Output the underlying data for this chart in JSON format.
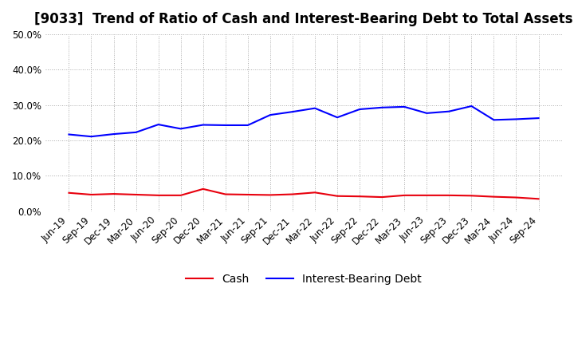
{
  "title": "[9033]  Trend of Ratio of Cash and Interest-Bearing Debt to Total Assets",
  "labels": [
    "Jun-19",
    "Sep-19",
    "Dec-19",
    "Mar-20",
    "Jun-20",
    "Sep-20",
    "Dec-20",
    "Mar-21",
    "Jun-21",
    "Sep-21",
    "Dec-21",
    "Mar-22",
    "Jun-22",
    "Sep-22",
    "Dec-22",
    "Mar-23",
    "Jun-23",
    "Sep-23",
    "Dec-23",
    "Mar-24",
    "Jun-24",
    "Sep-24"
  ],
  "cash": [
    5.2,
    4.7,
    4.9,
    4.7,
    4.5,
    4.5,
    6.3,
    4.8,
    4.7,
    4.6,
    4.8,
    5.3,
    4.3,
    4.2,
    4.0,
    4.5,
    4.5,
    4.5,
    4.4,
    4.1,
    3.9,
    3.5
  ],
  "interest_debt": [
    21.7,
    21.1,
    21.8,
    22.3,
    24.5,
    23.3,
    24.4,
    24.3,
    24.3,
    27.2,
    28.1,
    29.1,
    26.5,
    28.8,
    29.3,
    29.5,
    27.7,
    28.2,
    29.7,
    25.8,
    26.0,
    26.3
  ],
  "cash_color": "#e8000d",
  "debt_color": "#0000ff",
  "ylim": [
    0,
    50
  ],
  "yticks": [
    0,
    10,
    20,
    30,
    40,
    50
  ],
  "background_color": "#ffffff",
  "plot_bg_color": "#ffffff",
  "grid_color": "#aaaaaa",
  "legend_cash": "Cash",
  "legend_debt": "Interest-Bearing Debt",
  "title_fontsize": 12,
  "axis_fontsize": 8.5,
  "legend_fontsize": 10
}
